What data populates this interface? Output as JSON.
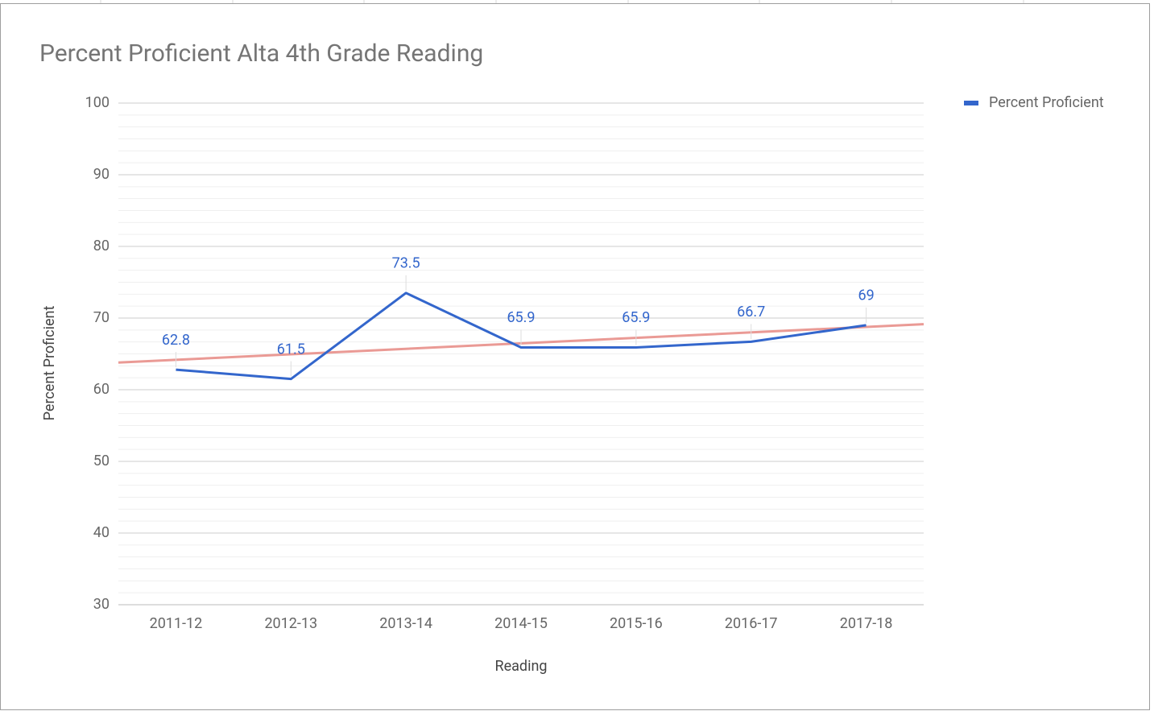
{
  "chart_data": {
    "type": "line",
    "title": "Percent Proficient Alta 4th Grade Reading",
    "x_label": "Reading",
    "y_label": "Percent Proficient",
    "categories": [
      "2011-12",
      "2012-13",
      "2013-14",
      "2014-15",
      "2015-16",
      "2016-17",
      "2017-18"
    ],
    "series": [
      {
        "name": "Percent Proficient",
        "color": "#3366cc",
        "values": [
          62.8,
          61.5,
          73.5,
          65.9,
          65.9,
          66.7,
          69
        ]
      }
    ],
    "ylim": [
      30,
      100
    ],
    "yticks": [
      30,
      40,
      50,
      60,
      70,
      80,
      90,
      100
    ],
    "grid": true,
    "minor_grid": true,
    "data_labels": true,
    "trendline": {
      "type": "linear",
      "color": "#e8908a"
    },
    "legend": "right"
  }
}
